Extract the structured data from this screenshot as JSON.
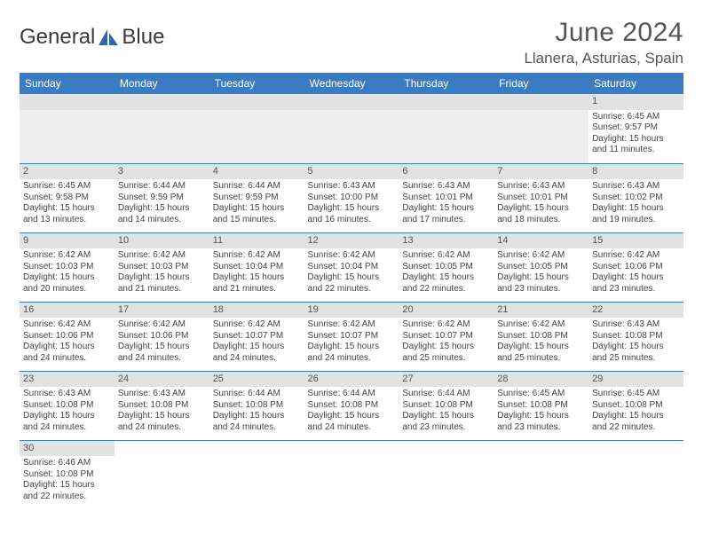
{
  "brand": {
    "name1": "General",
    "name2": "Blue"
  },
  "header": {
    "month_title": "June 2024",
    "location": "Llanera, Asturias, Spain"
  },
  "calendar_colors": {
    "header_bg": "#3b7bbf",
    "header_fg": "#ffffff",
    "daynum_bg": "#e2e2e2",
    "border": "#3b7bbf",
    "blank_bg": "#eeeeee"
  },
  "day_headers": [
    "Sunday",
    "Monday",
    "Tuesday",
    "Wednesday",
    "Thursday",
    "Friday",
    "Saturday"
  ],
  "weeks": [
    [
      null,
      null,
      null,
      null,
      null,
      null,
      {
        "n": "1",
        "sunrise": "Sunrise: 6:45 AM",
        "sunset": "Sunset: 9:57 PM",
        "daylight1": "Daylight: 15 hours",
        "daylight2": "and 11 minutes."
      }
    ],
    [
      {
        "n": "2",
        "sunrise": "Sunrise: 6:45 AM",
        "sunset": "Sunset: 9:58 PM",
        "daylight1": "Daylight: 15 hours",
        "daylight2": "and 13 minutes."
      },
      {
        "n": "3",
        "sunrise": "Sunrise: 6:44 AM",
        "sunset": "Sunset: 9:59 PM",
        "daylight1": "Daylight: 15 hours",
        "daylight2": "and 14 minutes."
      },
      {
        "n": "4",
        "sunrise": "Sunrise: 6:44 AM",
        "sunset": "Sunset: 9:59 PM",
        "daylight1": "Daylight: 15 hours",
        "daylight2": "and 15 minutes."
      },
      {
        "n": "5",
        "sunrise": "Sunrise: 6:43 AM",
        "sunset": "Sunset: 10:00 PM",
        "daylight1": "Daylight: 15 hours",
        "daylight2": "and 16 minutes."
      },
      {
        "n": "6",
        "sunrise": "Sunrise: 6:43 AM",
        "sunset": "Sunset: 10:01 PM",
        "daylight1": "Daylight: 15 hours",
        "daylight2": "and 17 minutes."
      },
      {
        "n": "7",
        "sunrise": "Sunrise: 6:43 AM",
        "sunset": "Sunset: 10:01 PM",
        "daylight1": "Daylight: 15 hours",
        "daylight2": "and 18 minutes."
      },
      {
        "n": "8",
        "sunrise": "Sunrise: 6:43 AM",
        "sunset": "Sunset: 10:02 PM",
        "daylight1": "Daylight: 15 hours",
        "daylight2": "and 19 minutes."
      }
    ],
    [
      {
        "n": "9",
        "sunrise": "Sunrise: 6:42 AM",
        "sunset": "Sunset: 10:03 PM",
        "daylight1": "Daylight: 15 hours",
        "daylight2": "and 20 minutes."
      },
      {
        "n": "10",
        "sunrise": "Sunrise: 6:42 AM",
        "sunset": "Sunset: 10:03 PM",
        "daylight1": "Daylight: 15 hours",
        "daylight2": "and 21 minutes."
      },
      {
        "n": "11",
        "sunrise": "Sunrise: 6:42 AM",
        "sunset": "Sunset: 10:04 PM",
        "daylight1": "Daylight: 15 hours",
        "daylight2": "and 21 minutes."
      },
      {
        "n": "12",
        "sunrise": "Sunrise: 6:42 AM",
        "sunset": "Sunset: 10:04 PM",
        "daylight1": "Daylight: 15 hours",
        "daylight2": "and 22 minutes."
      },
      {
        "n": "13",
        "sunrise": "Sunrise: 6:42 AM",
        "sunset": "Sunset: 10:05 PM",
        "daylight1": "Daylight: 15 hours",
        "daylight2": "and 22 minutes."
      },
      {
        "n": "14",
        "sunrise": "Sunrise: 6:42 AM",
        "sunset": "Sunset: 10:05 PM",
        "daylight1": "Daylight: 15 hours",
        "daylight2": "and 23 minutes."
      },
      {
        "n": "15",
        "sunrise": "Sunrise: 6:42 AM",
        "sunset": "Sunset: 10:06 PM",
        "daylight1": "Daylight: 15 hours",
        "daylight2": "and 23 minutes."
      }
    ],
    [
      {
        "n": "16",
        "sunrise": "Sunrise: 6:42 AM",
        "sunset": "Sunset: 10:06 PM",
        "daylight1": "Daylight: 15 hours",
        "daylight2": "and 24 minutes."
      },
      {
        "n": "17",
        "sunrise": "Sunrise: 6:42 AM",
        "sunset": "Sunset: 10:06 PM",
        "daylight1": "Daylight: 15 hours",
        "daylight2": "and 24 minutes."
      },
      {
        "n": "18",
        "sunrise": "Sunrise: 6:42 AM",
        "sunset": "Sunset: 10:07 PM",
        "daylight1": "Daylight: 15 hours",
        "daylight2": "and 24 minutes."
      },
      {
        "n": "19",
        "sunrise": "Sunrise: 6:42 AM",
        "sunset": "Sunset: 10:07 PM",
        "daylight1": "Daylight: 15 hours",
        "daylight2": "and 24 minutes."
      },
      {
        "n": "20",
        "sunrise": "Sunrise: 6:42 AM",
        "sunset": "Sunset: 10:07 PM",
        "daylight1": "Daylight: 15 hours",
        "daylight2": "and 25 minutes."
      },
      {
        "n": "21",
        "sunrise": "Sunrise: 6:42 AM",
        "sunset": "Sunset: 10:08 PM",
        "daylight1": "Daylight: 15 hours",
        "daylight2": "and 25 minutes."
      },
      {
        "n": "22",
        "sunrise": "Sunrise: 6:43 AM",
        "sunset": "Sunset: 10:08 PM",
        "daylight1": "Daylight: 15 hours",
        "daylight2": "and 25 minutes."
      }
    ],
    [
      {
        "n": "23",
        "sunrise": "Sunrise: 6:43 AM",
        "sunset": "Sunset: 10:08 PM",
        "daylight1": "Daylight: 15 hours",
        "daylight2": "and 24 minutes."
      },
      {
        "n": "24",
        "sunrise": "Sunrise: 6:43 AM",
        "sunset": "Sunset: 10:08 PM",
        "daylight1": "Daylight: 15 hours",
        "daylight2": "and 24 minutes."
      },
      {
        "n": "25",
        "sunrise": "Sunrise: 6:44 AM",
        "sunset": "Sunset: 10:08 PM",
        "daylight1": "Daylight: 15 hours",
        "daylight2": "and 24 minutes."
      },
      {
        "n": "26",
        "sunrise": "Sunrise: 6:44 AM",
        "sunset": "Sunset: 10:08 PM",
        "daylight1": "Daylight: 15 hours",
        "daylight2": "and 24 minutes."
      },
      {
        "n": "27",
        "sunrise": "Sunrise: 6:44 AM",
        "sunset": "Sunset: 10:08 PM",
        "daylight1": "Daylight: 15 hours",
        "daylight2": "and 23 minutes."
      },
      {
        "n": "28",
        "sunrise": "Sunrise: 6:45 AM",
        "sunset": "Sunset: 10:08 PM",
        "daylight1": "Daylight: 15 hours",
        "daylight2": "and 23 minutes."
      },
      {
        "n": "29",
        "sunrise": "Sunrise: 6:45 AM",
        "sunset": "Sunset: 10:08 PM",
        "daylight1": "Daylight: 15 hours",
        "daylight2": "and 22 minutes."
      }
    ],
    [
      {
        "n": "30",
        "sunrise": "Sunrise: 6:46 AM",
        "sunset": "Sunset: 10:08 PM",
        "daylight1": "Daylight: 15 hours",
        "daylight2": "and 22 minutes."
      },
      null,
      null,
      null,
      null,
      null,
      null
    ]
  ]
}
